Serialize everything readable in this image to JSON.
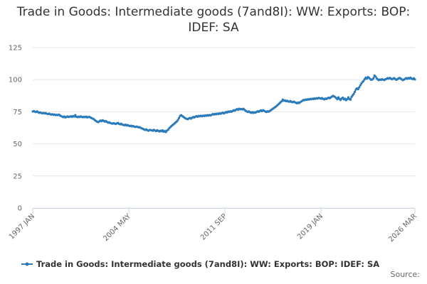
{
  "chart_data": {
    "type": "line",
    "title": "Trade in Goods: Intermediate goods (7and8I): WW: Exports: BOP: IDEF: SA",
    "source_label": "Source:",
    "categories": [
      "1997 JAN",
      null,
      null,
      null,
      null,
      null,
      null,
      null,
      null,
      null,
      null,
      null,
      null,
      null,
      null,
      null,
      null,
      null,
      null,
      null,
      null,
      null,
      null,
      null,
      null,
      null,
      null,
      null,
      null,
      null,
      null,
      null,
      null,
      null,
      null,
      null,
      null,
      null,
      null,
      null,
      null,
      null,
      null,
      null,
      null,
      null,
      null,
      null,
      null,
      null,
      null,
      null,
      null,
      null,
      null,
      null,
      null,
      null,
      null,
      null,
      null,
      null,
      null,
      null,
      null,
      null,
      null,
      null,
      null,
      null,
      null,
      null,
      null,
      null,
      null,
      null,
      null,
      null,
      null,
      null,
      null,
      null,
      null,
      null,
      null,
      null,
      null,
      null,
      "2004 MAY",
      null,
      null,
      null,
      null,
      null,
      null,
      null,
      null,
      null,
      null,
      null,
      null,
      null,
      null,
      null,
      null,
      null,
      null,
      null,
      null,
      null,
      null,
      null,
      null,
      null,
      null,
      null,
      null,
      null,
      null,
      null,
      null,
      null,
      null,
      null,
      null,
      null,
      null,
      null,
      null,
      null,
      null,
      null,
      null,
      null,
      null,
      null,
      null,
      null,
      null,
      null,
      null,
      null,
      null,
      null,
      null,
      null,
      null,
      null,
      null,
      null,
      null,
      null,
      null,
      null,
      null,
      null,
      null,
      null,
      null,
      null,
      null,
      null,
      null,
      null,
      null,
      null,
      null,
      null,
      null,
      null,
      null,
      null,
      null,
      null,
      null,
      null,
      "2011 SEP",
      null,
      null,
      null,
      null,
      null,
      null,
      null,
      null,
      null,
      null,
      null,
      null,
      null,
      null,
      null,
      null,
      null,
      null,
      null,
      null,
      null,
      null,
      null,
      null,
      null,
      null,
      null,
      null,
      null,
      null,
      null,
      null,
      null,
      null,
      null,
      null,
      null,
      null,
      null,
      null,
      null,
      null,
      null,
      null,
      null,
      null,
      null,
      null,
      null,
      null,
      null,
      null,
      null,
      null,
      null,
      null,
      null,
      null,
      null,
      null,
      null,
      null,
      null,
      null,
      null,
      null,
      null,
      null,
      null,
      null,
      null,
      null,
      null,
      null,
      null,
      null,
      null,
      null,
      null,
      null,
      null,
      null,
      null,
      null,
      null,
      null,
      null,
      "2019 JAN",
      null,
      null,
      null,
      null,
      null,
      null,
      null,
      null,
      null,
      null,
      null,
      null,
      null,
      null,
      null,
      null,
      null,
      null,
      null,
      null,
      null,
      null,
      null,
      null,
      null,
      null,
      null,
      null,
      null,
      null,
      null,
      null,
      null,
      null,
      null,
      null,
      null,
      null,
      null,
      null,
      null,
      null,
      null,
      null,
      null,
      null,
      null,
      null,
      null,
      null,
      null,
      null,
      null,
      null,
      null,
      null,
      null,
      null,
      null,
      null,
      null,
      null,
      null,
      null,
      null,
      null,
      null,
      null,
      null,
      null,
      null,
      null,
      null,
      null,
      null,
      null,
      null,
      null,
      null,
      null,
      null,
      null,
      null,
      null,
      null,
      "2026 MAR"
    ],
    "series": [
      {
        "name": "Trade in Goods: Intermediate goods (7and8I): WW: Exports: BOP: IDEF: SA",
        "color": "#2b7bba",
        "values": [
          75.2,
          75.5,
          75.0,
          74.8,
          75.3,
          74.6,
          74.2,
          74.5,
          74.0,
          73.8,
          74.1,
          73.6,
          73.9,
          73.4,
          73.2,
          73.6,
          73.0,
          72.8,
          73.1,
          72.6,
          72.9,
          72.4,
          72.7,
          72.3,
          72.8,
          72.1,
          71.6,
          71.2,
          70.8,
          71.3,
          70.6,
          71.0,
          71.4,
          70.9,
          71.2,
          71.5,
          71.0,
          71.6,
          71.3,
          72.4,
          71.1,
          70.8,
          71.2,
          70.9,
          71.4,
          71.0,
          70.7,
          71.1,
          70.8,
          71.2,
          70.6,
          70.9,
          71.0,
          70.4,
          70.1,
          69.6,
          69.2,
          68.4,
          67.8,
          67.2,
          66.9,
          67.5,
          68.2,
          67.6,
          68.4,
          67.9,
          67.3,
          67.8,
          67.1,
          66.5,
          66.8,
          66.2,
          66.0,
          65.7,
          66.1,
          65.8,
          65.5,
          65.9,
          66.3,
          65.6,
          65.2,
          65.7,
          65.0,
          64.8,
          64.5,
          64.9,
          64.3,
          64.6,
          64.1,
          63.8,
          64.2,
          63.6,
          63.9,
          63.4,
          63.1,
          63.5,
          63.2,
          62.8,
          63.0,
          62.4,
          62.0,
          61.6,
          61.2,
          60.8,
          61.3,
          60.6,
          60.2,
          60.8,
          60.8,
          60.5,
          60.2,
          60.9,
          60.4,
          59.9,
          60.6,
          60.1,
          59.6,
          60.3,
          59.8,
          60.5,
          59.4,
          60.0,
          59.2,
          60.4,
          61.0,
          62.2,
          63.0,
          63.8,
          64.6,
          65.2,
          66.0,
          66.8,
          67.5,
          68.6,
          70.2,
          71.8,
          72.3,
          71.6,
          71.0,
          70.4,
          69.8,
          69.5,
          69.2,
          69.8,
          70.2,
          69.6,
          70.4,
          70.9,
          70.5,
          71.2,
          71.6,
          71.1,
          71.8,
          71.4,
          71.9,
          71.5,
          72.0,
          71.6,
          72.2,
          71.8,
          72.4,
          72.0,
          72.5,
          72.1,
          72.7,
          73.2,
          72.8,
          73.4,
          73.0,
          73.6,
          73.2,
          73.8,
          73.4,
          73.9,
          74.3,
          73.7,
          74.2,
          74.8,
          74.4,
          75.2,
          74.8,
          75.4,
          75.0,
          75.6,
          76.2,
          75.8,
          76.5,
          77.0,
          76.6,
          77.4,
          76.9,
          77.2,
          76.8,
          77.3,
          76.5,
          75.8,
          75.2,
          74.8,
          75.3,
          74.6,
          74.2,
          74.7,
          74.1,
          74.6,
          74.3,
          74.9,
          75.4,
          75.0,
          75.6,
          76.1,
          75.5,
          76.2,
          75.8,
          75.2,
          74.8,
          75.4,
          75.0,
          75.6,
          76.2,
          76.8,
          77.4,
          78.0,
          78.6,
          79.2,
          80.0,
          80.8,
          81.6,
          82.4,
          83.2,
          84.5,
          83.6,
          83.9,
          83.2,
          83.6,
          83.0,
          82.8,
          83.3,
          82.7,
          82.4,
          82.9,
          82.5,
          82.0,
          81.6,
          82.2,
          81.8,
          82.5,
          83.0,
          83.6,
          84.2,
          84.0,
          84.6,
          84.3,
          84.8,
          84.5,
          85.0,
          84.7,
          85.2,
          84.9,
          85.4,
          85.1,
          85.6,
          85.3,
          85.8,
          85.5,
          85.2,
          85.7,
          85.0,
          84.6,
          85.3,
          84.9,
          85.5,
          86.0,
          85.6,
          86.2,
          86.8,
          87.4,
          87.0,
          86.4,
          85.6,
          84.8,
          86.2,
          85.0,
          84.2,
          85.4,
          86.0,
          84.6,
          85.2,
          84.0,
          84.8,
          86.2,
          85.0,
          84.4,
          86.6,
          87.8,
          89.0,
          90.6,
          92.4,
          93.2,
          92.6,
          94.0,
          95.6,
          97.0,
          98.2,
          99.0,
          100.4,
          101.6,
          100.8,
          102.0,
          101.4,
          100.6,
          99.8,
          100.2,
          101.0,
          103.2,
          102.4,
          101.0,
          100.2,
          99.6,
          100.1,
          99.8,
          100.4,
          100.0,
          99.7,
          100.3,
          100.6,
          101.2,
          100.8,
          101.4,
          100.9,
          100.3,
          100.7,
          101.2,
          100.5,
          99.9,
          100.4,
          101.0,
          101.4,
          100.8,
          100.2,
          99.6,
          100.1,
          100.6,
          101.2,
          100.7,
          101.3,
          100.9,
          101.6,
          100.8,
          100.4,
          101.1,
          100.2
        ]
      }
    ],
    "ylim": [
      0,
      125
    ],
    "yticks": [
      0,
      25,
      50,
      75,
      100,
      125
    ],
    "grid": true,
    "legend": "bottom"
  }
}
